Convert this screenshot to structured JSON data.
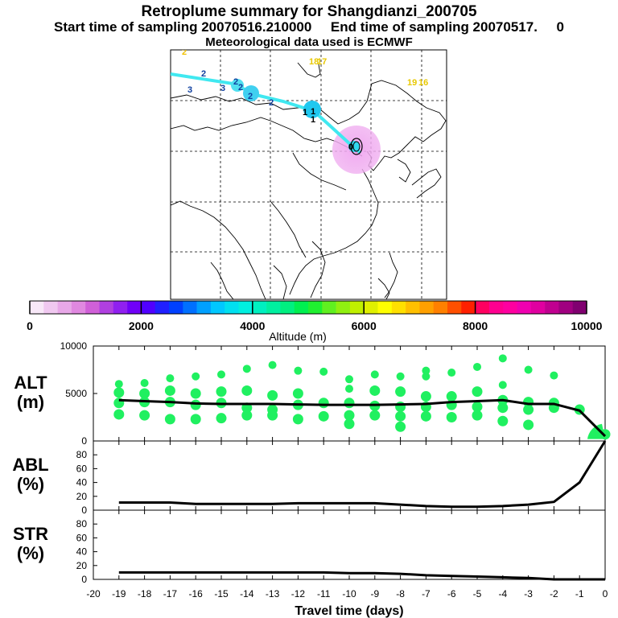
{
  "header": {
    "title": "Retroplume summary for Shangdianzi_200705",
    "sampling": "Start time of sampling 20070516.210000     End time of sampling 20070517.     0",
    "met": "Meteorological data used is ECMWF"
  },
  "colorbar": {
    "label": "Altitude (m)",
    "ticks": [
      "0",
      "2000",
      "4000",
      "6000",
      "8000",
      "10000"
    ],
    "colors": [
      "#f8e8f8",
      "#f0c8f0",
      "#e8a8e8",
      "#e088e0",
      "#d060d8",
      "#b040e0",
      "#9020f0",
      "#7000f8",
      "#5000ff",
      "#2020ff",
      "#0040ff",
      "#0070ff",
      "#00a0ff",
      "#00c8ff",
      "#00e0f0",
      "#00f0e0",
      "#00f0c0",
      "#00f0a0",
      "#00f080",
      "#00f050",
      "#20f030",
      "#60f020",
      "#90f010",
      "#c0f000",
      "#e0f000",
      "#ffff00",
      "#ffe000",
      "#ffc000",
      "#ffa000",
      "#ff8000",
      "#ff5000",
      "#ff2000",
      "#ff0060",
      "#ff0090",
      "#ff00a0",
      "#f000b0",
      "#e000a0",
      "#c00090",
      "#a00080",
      "#800070"
    ]
  },
  "map": {
    "day_labels": [
      {
        "text": "2",
        "color": "#f0c000"
      },
      {
        "text": "18",
        "color": "#e8c800"
      },
      {
        "text": "17",
        "color": "#e8c800"
      },
      {
        "text": "19",
        "color": "#e8c800"
      },
      {
        "text": "16",
        "color": "#e8c800"
      },
      {
        "text": "2",
        "color": "#1040a0"
      },
      {
        "text": "3",
        "color": "#1040a0"
      },
      {
        "text": "3",
        "color": "#1040a0"
      },
      {
        "text": "2",
        "color": "#1040a0"
      },
      {
        "text": "2",
        "color": "#1040a0"
      },
      {
        "text": "2",
        "color": "#1040a0"
      },
      {
        "text": "2",
        "color": "#1040a0"
      },
      {
        "text": "1",
        "color": "#000000"
      },
      {
        "text": "1",
        "color": "#000000"
      },
      {
        "text": "1",
        "color": "#000000"
      },
      {
        "text": "0",
        "color": "#000000"
      }
    ]
  },
  "chart_data": [
    {
      "type": "scatter",
      "name": "ALT",
      "ylabel": "ALT\n(m)",
      "ylim": [
        0,
        10000
      ],
      "ytick_labels": [
        "0",
        "5000",
        "10000"
      ],
      "xlim": [
        -20,
        0
      ],
      "mean_altitude": {
        "x": [
          -19,
          -18,
          -17,
          -16,
          -15,
          -14,
          -13,
          -12,
          -11,
          -10,
          -9,
          -8,
          -7,
          -6,
          -5,
          -4,
          -3,
          -2,
          -1,
          0
        ],
        "y": [
          4300,
          4200,
          4100,
          3950,
          3900,
          3900,
          3900,
          3850,
          3800,
          3800,
          3800,
          3850,
          3900,
          4100,
          4200,
          4300,
          3900,
          3900,
          3200,
          500
        ]
      },
      "cluster_points": [
        [
          -19,
          6000
        ],
        [
          -19,
          5100
        ],
        [
          -19,
          4000
        ],
        [
          -19,
          2800
        ],
        [
          -18,
          6100
        ],
        [
          -18,
          5000
        ],
        [
          -18,
          4100
        ],
        [
          -18,
          2700
        ],
        [
          -17,
          6600
        ],
        [
          -17,
          5300
        ],
        [
          -17,
          4100
        ],
        [
          -17,
          2300
        ],
        [
          -16,
          6800
        ],
        [
          -16,
          5000
        ],
        [
          -16,
          3800
        ],
        [
          -16,
          2300
        ],
        [
          -15,
          7000
        ],
        [
          -15,
          5200
        ],
        [
          -15,
          4000
        ],
        [
          -15,
          2400
        ],
        [
          -14,
          7600
        ],
        [
          -14,
          5300
        ],
        [
          -14,
          3500
        ],
        [
          -14,
          2700
        ],
        [
          -13,
          8000
        ],
        [
          -13,
          4800
        ],
        [
          -13,
          3300
        ],
        [
          -13,
          2700
        ],
        [
          -12,
          7400
        ],
        [
          -12,
          5000
        ],
        [
          -12,
          3800
        ],
        [
          -12,
          2300
        ],
        [
          -11,
          7300
        ],
        [
          -11,
          4000
        ],
        [
          -11,
          2600
        ],
        [
          -10,
          6500
        ],
        [
          -10,
          5500
        ],
        [
          -10,
          4000
        ],
        [
          -10,
          2700
        ],
        [
          -10,
          1800
        ],
        [
          -9,
          7000
        ],
        [
          -9,
          5300
        ],
        [
          -9,
          3700
        ],
        [
          -9,
          2700
        ],
        [
          -8,
          6800
        ],
        [
          -8,
          5200
        ],
        [
          -8,
          3600
        ],
        [
          -8,
          2600
        ],
        [
          -8,
          1500
        ],
        [
          -7,
          7400
        ],
        [
          -7,
          6800
        ],
        [
          -7,
          4700
        ],
        [
          -7,
          3600
        ],
        [
          -7,
          2600
        ],
        [
          -6,
          7200
        ],
        [
          -6,
          4700
        ],
        [
          -6,
          3800
        ],
        [
          -6,
          2500
        ],
        [
          -5,
          7800
        ],
        [
          -5,
          5200
        ],
        [
          -5,
          3600
        ],
        [
          -5,
          2700
        ],
        [
          -4,
          8700
        ],
        [
          -4,
          5900
        ],
        [
          -4,
          4300
        ],
        [
          -4,
          3500
        ],
        [
          -4,
          2100
        ],
        [
          -3,
          7500
        ],
        [
          -3,
          4100
        ],
        [
          -3,
          3300
        ],
        [
          -3,
          1700
        ],
        [
          -2,
          6900
        ],
        [
          -2,
          4000
        ],
        [
          -2,
          3500
        ],
        [
          -1,
          3300
        ],
        [
          0,
          700
        ]
      ]
    },
    {
      "type": "line",
      "name": "ABL",
      "ylabel": "ABL\n(%)",
      "ylim": [
        0,
        100
      ],
      "ytick_labels": [
        "0",
        "20",
        "40",
        "60",
        "80"
      ],
      "x": [
        -19,
        -18,
        -17,
        -16,
        -15,
        -14,
        -13,
        -12,
        -11,
        -10,
        -9,
        -8,
        -7,
        -6,
        -5,
        -4,
        -3,
        -2,
        -1,
        0
      ],
      "y": [
        11,
        11,
        11,
        9,
        9,
        9,
        9,
        10,
        10,
        10,
        10,
        8,
        6,
        5,
        5,
        6,
        8,
        12,
        40,
        100
      ]
    },
    {
      "type": "line",
      "name": "STR",
      "ylabel": "STR\n(%)",
      "ylim": [
        0,
        100
      ],
      "ytick_labels": [
        "0",
        "20",
        "40",
        "60",
        "80"
      ],
      "x": [
        -19,
        -18,
        -17,
        -16,
        -15,
        -14,
        -13,
        -12,
        -11,
        -10,
        -9,
        -8,
        -7,
        -6,
        -5,
        -4,
        -3,
        -2,
        -1,
        0
      ],
      "y": [
        10,
        10,
        10,
        10,
        10,
        10,
        10,
        10,
        10,
        9,
        9,
        8,
        6,
        5,
        4,
        3,
        2,
        0,
        0,
        0
      ],
      "xlabel": "Travel time (days)",
      "xtick_labels": [
        "-20",
        "-19",
        "-18",
        "-17",
        "-16",
        "-15",
        "-14",
        "-13",
        "-12",
        "-11",
        "-10",
        "-9",
        "-8",
        "-7",
        "-6",
        "-5",
        "-4",
        "-3",
        "-2",
        "-1",
        "0"
      ]
    }
  ]
}
